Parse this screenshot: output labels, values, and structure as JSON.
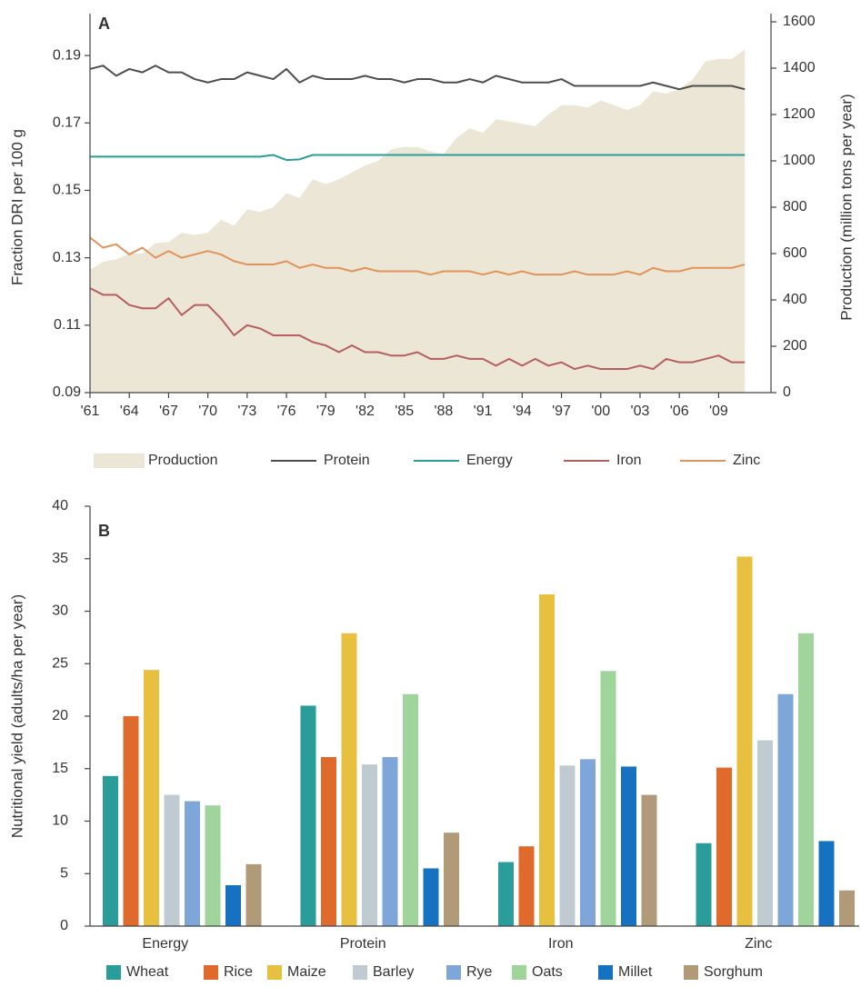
{
  "chart_data": [
    {
      "type": "line",
      "label": "A",
      "y_label": "Fraction DRI per 100 g",
      "y2_label": "Production (million tons per year)",
      "x": [
        1961,
        1962,
        1963,
        1964,
        1965,
        1966,
        1967,
        1968,
        1969,
        1970,
        1971,
        1972,
        1973,
        1974,
        1975,
        1976,
        1977,
        1978,
        1979,
        1980,
        1981,
        1982,
        1983,
        1984,
        1985,
        1986,
        1987,
        1988,
        1989,
        1990,
        1991,
        1992,
        1993,
        1994,
        1995,
        1996,
        1997,
        1998,
        1999,
        2000,
        2001,
        2002,
        2003,
        2004,
        2005,
        2006,
        2007,
        2008,
        2009,
        2010,
        2011
      ],
      "xlim": [
        1961,
        2013
      ],
      "xticks": [
        {
          "value": 1961,
          "label": "'61"
        },
        {
          "value": 1964,
          "label": "'64"
        },
        {
          "value": 1967,
          "label": "'67"
        },
        {
          "value": 1970,
          "label": "'70"
        },
        {
          "value": 1973,
          "label": "'73"
        },
        {
          "value": 1976,
          "label": "'76"
        },
        {
          "value": 1979,
          "label": "'79"
        },
        {
          "value": 1982,
          "label": "'82"
        },
        {
          "value": 1985,
          "label": "'85"
        },
        {
          "value": 1988,
          "label": "'88"
        },
        {
          "value": 1991,
          "label": "'91"
        },
        {
          "value": 1994,
          "label": "'94"
        },
        {
          "value": 1997,
          "label": "'97"
        },
        {
          "value": 2000,
          "label": "'00"
        },
        {
          "value": 2003,
          "label": "'03"
        },
        {
          "value": 2006,
          "label": "'06"
        },
        {
          "value": 2009,
          "label": "'09"
        }
      ],
      "ylim": [
        0.09,
        0.2
      ],
      "yticks": [
        0.09,
        0.11,
        0.13,
        0.15,
        0.17,
        0.19
      ],
      "y2lim": [
        0,
        1600
      ],
      "y2ticks": [
        0,
        200,
        400,
        600,
        800,
        1000,
        1200,
        1400,
        1600
      ],
      "series": [
        {
          "name": "Production",
          "type": "area",
          "axis": "y2",
          "color": "#ece6d6",
          "values": [
            530,
            565,
            575,
            600,
            600,
            645,
            650,
            690,
            680,
            690,
            745,
            720,
            790,
            780,
            800,
            860,
            840,
            920,
            900,
            920,
            950,
            980,
            1000,
            1050,
            1060,
            1060,
            1040,
            1030,
            1100,
            1140,
            1120,
            1180,
            1170,
            1160,
            1150,
            1200,
            1240,
            1240,
            1230,
            1260,
            1240,
            1220,
            1240,
            1300,
            1290,
            1310,
            1350,
            1430,
            1440,
            1440,
            1480
          ]
        },
        {
          "name": "Protein",
          "color": "#4d4d4d",
          "values": [
            0.186,
            0.187,
            0.184,
            0.186,
            0.185,
            0.187,
            0.185,
            0.185,
            0.183,
            0.182,
            0.183,
            0.183,
            0.185,
            0.184,
            0.183,
            0.186,
            0.182,
            0.184,
            0.183,
            0.183,
            0.183,
            0.184,
            0.183,
            0.183,
            0.182,
            0.183,
            0.183,
            0.182,
            0.182,
            0.183,
            0.182,
            0.184,
            0.183,
            0.182,
            0.182,
            0.182,
            0.183,
            0.181,
            0.181,
            0.181,
            0.181,
            0.181,
            0.181,
            0.182,
            0.181,
            0.18,
            0.181,
            0.181,
            0.181,
            0.181,
            0.18
          ]
        },
        {
          "name": "Energy",
          "color": "#2a9d9a",
          "values": [
            0.16,
            0.16,
            0.16,
            0.16,
            0.16,
            0.16,
            0.16,
            0.16,
            0.16,
            0.16,
            0.16,
            0.16,
            0.16,
            0.16,
            0.1605,
            0.159,
            0.1592,
            0.1605,
            0.1605,
            0.1605,
            0.1605,
            0.1605,
            0.1605,
            0.1605,
            0.1605,
            0.1605,
            0.1605,
            0.1605,
            0.1605,
            0.1605,
            0.1605,
            0.1605,
            0.1605,
            0.1605,
            0.1605,
            0.1605,
            0.1605,
            0.1605,
            0.1605,
            0.1605,
            0.1605,
            0.1605,
            0.1605,
            0.1605,
            0.1605,
            0.1605,
            0.1605,
            0.1605,
            0.1605,
            0.1605,
            0.1605
          ]
        },
        {
          "name": "Iron",
          "color": "#b55e5e",
          "values": [
            0.121,
            0.119,
            0.119,
            0.116,
            0.115,
            0.115,
            0.118,
            0.113,
            0.116,
            0.116,
            0.112,
            0.107,
            0.11,
            0.109,
            0.107,
            0.107,
            0.107,
            0.105,
            0.104,
            0.102,
            0.104,
            0.102,
            0.102,
            0.101,
            0.101,
            0.102,
            0.1,
            0.1,
            0.101,
            0.1,
            0.1,
            0.098,
            0.1,
            0.098,
            0.1,
            0.098,
            0.099,
            0.097,
            0.098,
            0.097,
            0.097,
            0.097,
            0.098,
            0.097,
            0.1,
            0.099,
            0.099,
            0.1,
            0.101,
            0.099,
            0.099
          ]
        },
        {
          "name": "Zinc",
          "color": "#e0935a",
          "values": [
            0.136,
            0.133,
            0.134,
            0.131,
            0.133,
            0.13,
            0.132,
            0.13,
            0.131,
            0.132,
            0.131,
            0.129,
            0.128,
            0.128,
            0.128,
            0.129,
            0.127,
            0.128,
            0.127,
            0.127,
            0.126,
            0.127,
            0.126,
            0.126,
            0.126,
            0.126,
            0.125,
            0.126,
            0.126,
            0.126,
            0.125,
            0.126,
            0.125,
            0.126,
            0.125,
            0.125,
            0.125,
            0.126,
            0.125,
            0.125,
            0.125,
            0.126,
            0.125,
            0.127,
            0.126,
            0.126,
            0.127,
            0.127,
            0.127,
            0.127,
            0.128
          ]
        }
      ]
    },
    {
      "type": "bar",
      "label": "B",
      "y_label": "Nutritional yield (adults/ha per year)",
      "categories": [
        "Energy",
        "Protein",
        "Iron",
        "Zinc"
      ],
      "ylim": [
        0,
        40
      ],
      "yticks": [
        0,
        5,
        10,
        15,
        20,
        25,
        30,
        35,
        40
      ],
      "series": [
        {
          "name": "Wheat",
          "color": "#2a9d9a",
          "values": [
            14.3,
            21,
            6.1,
            7.9
          ]
        },
        {
          "name": "Rice",
          "color": "#e06a2c",
          "values": [
            20,
            16.1,
            7.6,
            15.1
          ]
        },
        {
          "name": "Maize",
          "color": "#e8c040",
          "values": [
            24.4,
            27.9,
            31.6,
            35.2
          ]
        },
        {
          "name": "Barley",
          "color": "#bfcbd1",
          "values": [
            12.5,
            15.4,
            15.3,
            17.7
          ]
        },
        {
          "name": "Rye",
          "color": "#7ea6d8",
          "values": [
            11.9,
            16.1,
            15.9,
            22.1
          ]
        },
        {
          "name": "Oats",
          "color": "#9fd49a",
          "values": [
            11.5,
            22.1,
            24.3,
            27.9
          ]
        },
        {
          "name": "Millet",
          "color": "#1672c0",
          "values": [
            3.9,
            5.5,
            15.2,
            8.1
          ]
        },
        {
          "name": "Sorghum",
          "color": "#b09a78",
          "values": [
            5.9,
            8.9,
            12.5,
            3.4
          ]
        }
      ]
    }
  ]
}
